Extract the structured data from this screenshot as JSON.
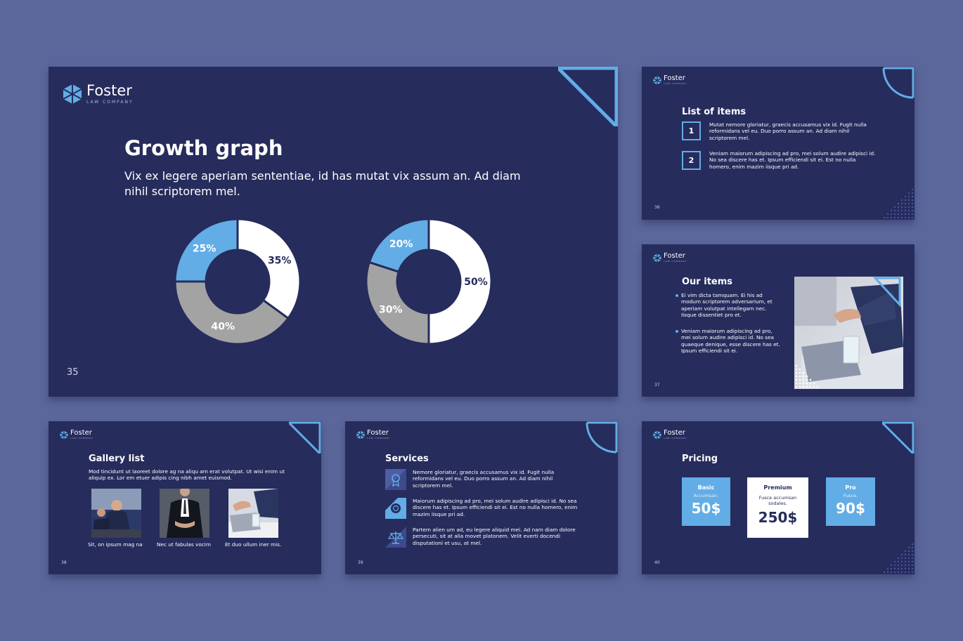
{
  "brand": {
    "name": "Foster",
    "tagline": "LAW COMPANY"
  },
  "colors": {
    "background": "#5b679b",
    "slide": "#262c5c",
    "accent": "#62ade6",
    "gray": "#a3a3a3",
    "white": "#ffffff"
  },
  "slide35": {
    "title": "Growth graph",
    "subtitle": "Vix ex legere aperiam sententiae, id has mutat vix assum an. Ad diam nihil scriptorem mel.",
    "page": "35"
  },
  "chart_data": [
    {
      "type": "pie",
      "labels": [
        "35%",
        "40%",
        "25%"
      ],
      "values": [
        35,
        40,
        25
      ],
      "colors": [
        "#ffffff",
        "#a3a3a3",
        "#62ade6"
      ]
    },
    {
      "type": "pie",
      "labels": [
        "50%",
        "30%",
        "20%"
      ],
      "values": [
        50,
        30,
        20
      ],
      "colors": [
        "#ffffff",
        "#a3a3a3",
        "#62ade6"
      ]
    }
  ],
  "slide36": {
    "title": "List of items",
    "page": "36",
    "items": [
      {
        "num": "1",
        "text": "Mutat nemore gloriatur, graecis accusamus vix id. Fugit nulla reformidans vel eu. Duo porro assum an. Ad diam nihil scriptorem mel."
      },
      {
        "num": "2",
        "text": "Veniam maiorum adipiscing ad pro, mei solum audire adipisci id. No sea discere has et. Ipsum efficiendi sit ei. Est no nulla homero, enim mazim iisque pri ad."
      }
    ]
  },
  "slide37": {
    "title": "Our items",
    "page": "37",
    "bullets": [
      "Ei vim dicta tamquam. Ei his ad modum scriptorem adversarium, et aperiam volutpat intellegam nec. Iisque dissentiet pro et.",
      "Veniam maiorum adipiscing ad pro, mei solum audire adipisci id. No sea quaeque denique, esse discere has et. Ipsum efficiendi sit ei."
    ]
  },
  "slide38": {
    "title": "Gallery list",
    "page": "38",
    "text": "Mod tincidunt ut laoreet dolore ag na aliqu am erat volutpat. Ut wisi enim ut aliquip ex. Lor em etuer adipis cing nibh amet euismod.",
    "captions": [
      "Sit, on ipsum mag na",
      "Nec ut fabulas vocim",
      "Et duo ullum iner mis."
    ]
  },
  "slide39": {
    "title": "Services",
    "page": "39",
    "items": [
      {
        "icon": "award-icon",
        "text": "Nemore gloriatur, graecis accusamus vix id. Fugit nulla reformidans vel eu. Duo porro assum an. Ad diam nihil scriptorem mel."
      },
      {
        "icon": "emblem-icon",
        "text": "Maiorum adipiscing ad pro, mei solum audire adipisci id. No sea discere has et. Ipsum efficiendi sit ei. Est no nulla homero, enim mazim iisque pri ad."
      },
      {
        "icon": "scales-icon",
        "text": "Partem alien um ad, eu legere aliquid mei. Ad nam diam dolore persecuti, sit at alia movet platonem. Velit everti docendi disputationi et usu, at mel."
      }
    ]
  },
  "slide40": {
    "title": "Pricing",
    "page": "40",
    "plans": [
      {
        "name": "Basic",
        "desc": "Accumsan.",
        "price": "50$"
      },
      {
        "name": "Premium",
        "desc": "Fusce accumsan sodales.",
        "price": "250$"
      },
      {
        "name": "Pro",
        "desc": "Fusce.",
        "price": "90$"
      }
    ]
  }
}
